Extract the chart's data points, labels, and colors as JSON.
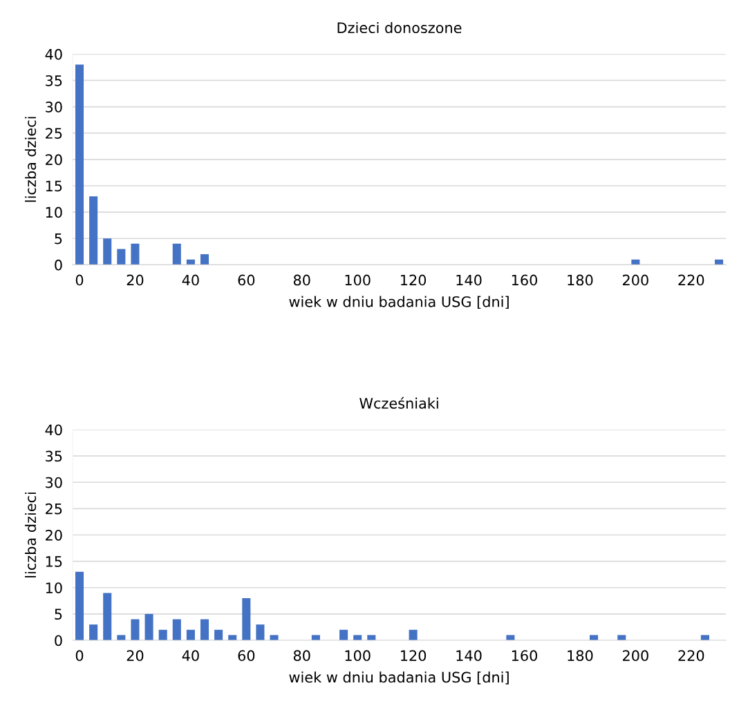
{
  "chart_data": [
    {
      "type": "bar",
      "title": "Dzieci donoszone",
      "xlabel": "wiek w dniu badania USG [dni]",
      "ylabel": "liczba dzieci",
      "categories": [
        "0",
        null,
        null,
        null,
        "20",
        null,
        null,
        null,
        "40",
        null,
        null,
        null,
        "60",
        null,
        null,
        null,
        "80",
        null,
        null,
        null,
        "100",
        null,
        null,
        null,
        "120",
        null,
        null,
        null,
        "140",
        null,
        null,
        null,
        "160",
        null,
        null,
        null,
        "180",
        null,
        null,
        null,
        "200",
        null,
        null,
        null,
        "220",
        null,
        null
      ],
      "values": [
        38,
        13,
        5,
        3,
        4,
        0,
        0,
        4,
        1,
        2,
        0,
        0,
        0,
        0,
        0,
        0,
        0,
        0,
        0,
        0,
        0,
        0,
        0,
        0,
        0,
        0,
        0,
        0,
        0,
        0,
        0,
        0,
        0,
        0,
        0,
        0,
        0,
        0,
        0,
        0,
        1,
        0,
        0,
        0,
        0,
        0,
        1
      ],
      "color": "#4472c4",
      "ylim": [
        0,
        40
      ],
      "yticks": [
        0,
        5,
        10,
        15,
        20,
        25,
        30,
        35,
        40
      ],
      "grid": "y"
    },
    {
      "type": "bar",
      "title": "Wcześniaki",
      "xlabel": "wiek w dniu badania USG [dni]",
      "ylabel": "liczba dzieci",
      "categories": [
        "0",
        null,
        null,
        null,
        "20",
        null,
        null,
        null,
        "40",
        null,
        null,
        null,
        "60",
        null,
        null,
        null,
        "80",
        null,
        null,
        null,
        "100",
        null,
        null,
        null,
        "120",
        null,
        null,
        null,
        "140",
        null,
        null,
        null,
        "160",
        null,
        null,
        null,
        "180",
        null,
        null,
        null,
        "200",
        null,
        null,
        null,
        "220",
        null,
        null
      ],
      "values": [
        13,
        3,
        9,
        1,
        4,
        5,
        2,
        4,
        2,
        4,
        2,
        1,
        8,
        3,
        1,
        0,
        0,
        1,
        0,
        2,
        1,
        1,
        0,
        0,
        2,
        0,
        0,
        0,
        0,
        0,
        0,
        1,
        0,
        0,
        0,
        0,
        0,
        1,
        0,
        1,
        0,
        0,
        0,
        0,
        0,
        1,
        0
      ],
      "color": "#4472c4",
      "ylim": [
        0,
        40
      ],
      "yticks": [
        0,
        5,
        10,
        15,
        20,
        25,
        30,
        35,
        40
      ],
      "grid": "y"
    }
  ]
}
